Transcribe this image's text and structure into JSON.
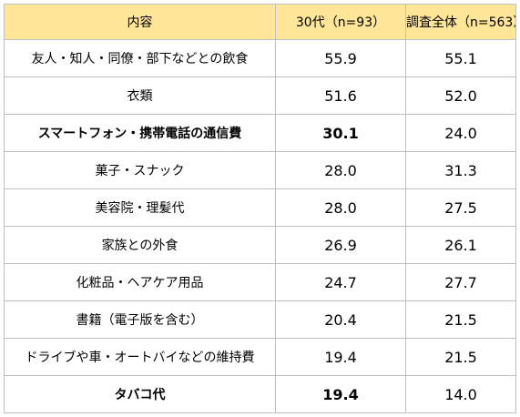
{
  "table": {
    "header_bg": "#ffe699",
    "headers": {
      "item": "内容",
      "age30s": "30代（n=93）",
      "total": "調査全体（n=563）"
    },
    "rows": [
      {
        "item": "友人・知人・同僚・部下などとの飲食",
        "age30s": "55.9",
        "total": "55.1",
        "emphasis": false
      },
      {
        "item": "衣類",
        "age30s": "51.6",
        "total": "52.0",
        "emphasis": false
      },
      {
        "item": "スマートフォン・携帯電話の通信費",
        "age30s": "30.1",
        "total": "24.0",
        "emphasis": true
      },
      {
        "item": "菓子・スナック",
        "age30s": "28.0",
        "total": "31.3",
        "emphasis": false
      },
      {
        "item": "美容院・理髪代",
        "age30s": "28.0",
        "total": "27.5",
        "emphasis": false
      },
      {
        "item": "家族との外食",
        "age30s": "26.9",
        "total": "26.1",
        "emphasis": false
      },
      {
        "item": "化粧品・ヘアケア用品",
        "age30s": "24.7",
        "total": "27.7",
        "emphasis": false
      },
      {
        "item": "書籍（電子版を含む）",
        "age30s": "20.4",
        "total": "21.5",
        "emphasis": false
      },
      {
        "item": "ドライブや車・オートバイなどの維持費",
        "age30s": "19.4",
        "total": "21.5",
        "emphasis": false
      },
      {
        "item": "タバコ代",
        "age30s": "19.4",
        "total": "14.0",
        "emphasis": true
      }
    ]
  }
}
